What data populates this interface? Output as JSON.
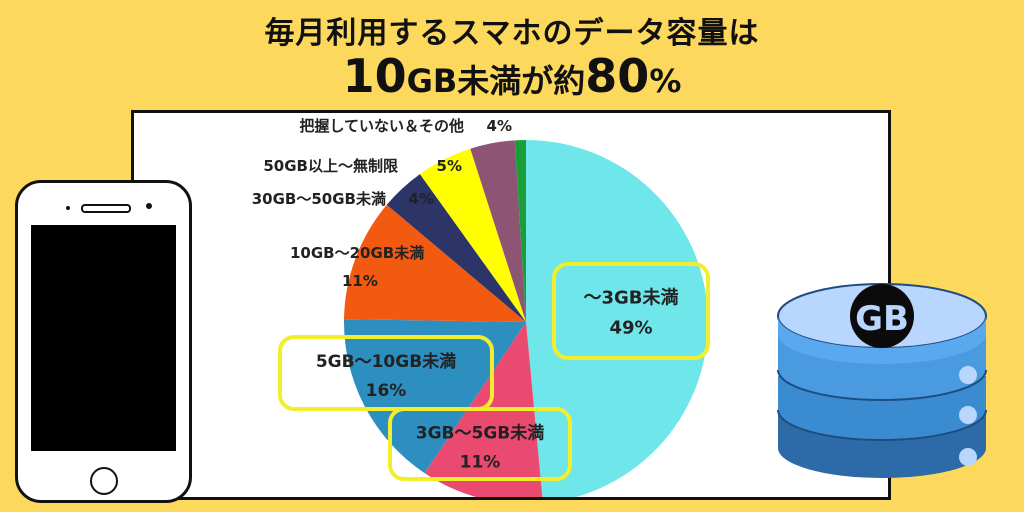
{
  "title": {
    "line1": "毎月利用するスマホのデータ容量は",
    "line2_part1": "10",
    "line2_part2": "GB未満が約",
    "line2_part3": "80",
    "line2_part4": "%"
  },
  "icons": {
    "phone": "smartphone-icon",
    "database": "gb-database-icon"
  },
  "database_label": "GB",
  "chart_data": {
    "type": "pie",
    "title": "毎月利用するスマホのデータ容量は10GB未満が約80%",
    "start": "12 o'clock, clockwise",
    "slices": [
      {
        "label": "〜3GB未満",
        "value": 49,
        "display": "49%",
        "color": "#6ee6ea",
        "highlight": true
      },
      {
        "label": "3GB〜5GB未満",
        "value": 11,
        "display": "11%",
        "color": "#ea4a70",
        "highlight": true
      },
      {
        "label": "5GB〜10GB未満",
        "value": 16,
        "display": "16%",
        "color": "#2d8ec0",
        "highlight": true
      },
      {
        "label": "10GB〜20GB未満",
        "value": 11,
        "display": "11%",
        "color": "#f25a12",
        "highlight": false
      },
      {
        "label": "30GB〜50GB未満",
        "value": 4,
        "display": "4%",
        "color": "#2c3468",
        "highlight": false
      },
      {
        "label": "50GB以上〜無制限",
        "value": 5,
        "display": "5%",
        "color": "#ffff00",
        "highlight": false
      },
      {
        "label": "把握していない＆その他",
        "value": 4,
        "display": "4%",
        "color": "#8e5474",
        "highlight": false
      },
      {
        "label": "",
        "value": 1,
        "display": "",
        "color": "#1a9e3a",
        "highlight": false
      }
    ]
  }
}
